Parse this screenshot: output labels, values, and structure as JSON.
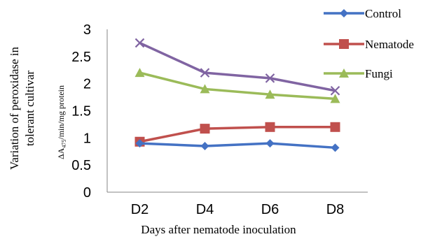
{
  "chart_data": {
    "type": "line",
    "categories": [
      "D2",
      "D4",
      "D6",
      "D8"
    ],
    "series": [
      {
        "name": "Control",
        "color": "#4472C4",
        "marker": "diamond",
        "values": [
          0.9,
          0.85,
          0.9,
          0.82
        ]
      },
      {
        "name": "Nematode",
        "color": "#C0504D",
        "marker": "square",
        "values": [
          0.93,
          1.17,
          1.2,
          1.2
        ]
      },
      {
        "name": "Fungi",
        "color": "#9BBB59",
        "marker": "triangle",
        "values": [
          2.2,
          1.9,
          1.8,
          1.72
        ]
      },
      {
        "name": "",
        "color": "#8064A2",
        "marker": "x",
        "values": [
          2.75,
          2.2,
          2.1,
          1.87
        ]
      }
    ],
    "xlabel": "Days after nematode inoculation",
    "ylabel_line1": "Variation of peroxidase in",
    "ylabel_line2": "tolerant cultivar",
    "ylabel_unit_prefix": "ΔA",
    "ylabel_unit_subscript": "475",
    "ylabel_unit_suffix": "/min/mg protein",
    "ylim": [
      0,
      3
    ],
    "yticks": [
      "0",
      "0.5",
      "1",
      "1.5",
      "2",
      "2.5",
      "3"
    ],
    "grid": false,
    "legend_position": "top-right"
  }
}
